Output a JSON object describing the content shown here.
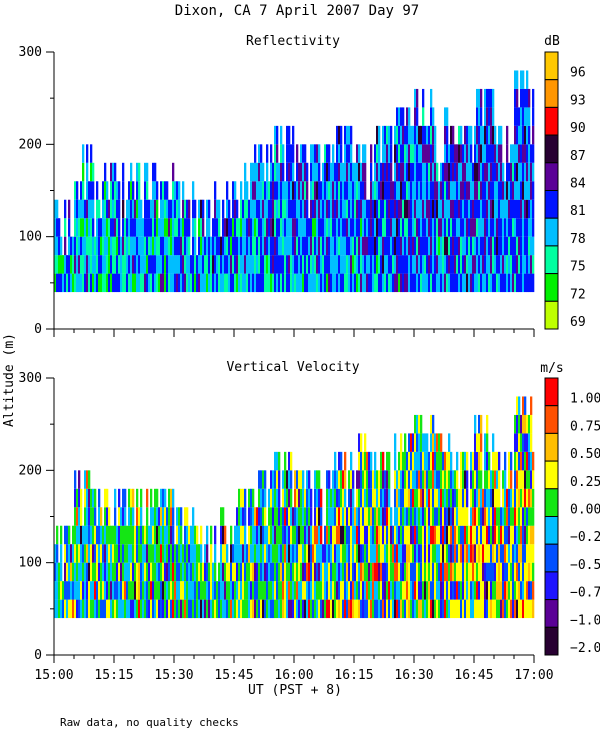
{
  "title": "Dixon, CA  7 April 2007  Day  97",
  "ylabel": "Altitude (m)",
  "xlabel": "UT  (PST + 8)",
  "footnote": "Raw data, no quality checks",
  "chart_data": [
    {
      "type": "heatmap",
      "title": "Reflectivity",
      "ylabel": "Altitude (m)",
      "xlabel": "UT  (PST + 8)",
      "xlim": [
        "15:00",
        "17:00"
      ],
      "ylim": [
        0,
        300
      ],
      "yticks": [
        "0",
        "100",
        "200",
        "300"
      ],
      "xticks": [
        "15:00",
        "15:15",
        "15:30",
        "15:45",
        "16:00",
        "16:15",
        "16:30",
        "16:45",
        "17:00"
      ],
      "gate_spacing_m": 20,
      "echo_base_m": 40,
      "echo_top_m_per_5min": [
        140,
        200,
        180,
        180,
        180,
        180,
        160,
        140,
        160,
        180,
        200,
        220,
        200,
        200,
        220,
        200,
        220,
        240,
        260,
        240,
        220,
        260,
        220,
        280
      ],
      "colorbar": {
        "unit": "dB",
        "labels": [
          "96",
          "93",
          "90",
          "87",
          "84",
          "81",
          "78",
          "75",
          "72",
          "69"
        ],
        "colors": [
          "#ffc800",
          "#ff9600",
          "#ff0000",
          "#280032",
          "#5a0096",
          "#0014ff",
          "#00beff",
          "#00ffa0",
          "#00f000",
          "#beff00"
        ]
      }
    },
    {
      "type": "heatmap",
      "title": "Vertical Velocity",
      "ylabel": "Altitude (m)",
      "xlabel": "UT  (PST + 8)",
      "xlim": [
        "15:00",
        "17:00"
      ],
      "ylim": [
        0,
        300
      ],
      "yticks": [
        "0",
        "100",
        "200",
        "300"
      ],
      "xticks": [
        "15:00",
        "15:15",
        "15:30",
        "15:45",
        "16:00",
        "16:15",
        "16:30",
        "16:45",
        "17:00"
      ],
      "gate_spacing_m": 20,
      "echo_base_m": 40,
      "echo_top_m_per_5min": [
        140,
        200,
        180,
        180,
        180,
        180,
        160,
        140,
        160,
        180,
        200,
        220,
        200,
        200,
        220,
        240,
        220,
        240,
        260,
        240,
        220,
        260,
        220,
        280
      ],
      "colorbar": {
        "unit": "m/s",
        "labels": [
          "1.00",
          "0.75",
          "0.50",
          "0.25",
          "0.00",
          "−0.25",
          "−0.50",
          "−0.75",
          "−1.00",
          "−2.00"
        ],
        "colors": [
          "#ff0000",
          "#ff5000",
          "#ffbe00",
          "#ffff00",
          "#14e614",
          "#00beff",
          "#0050ff",
          "#1e14ff",
          "#5a0096",
          "#280032"
        ]
      }
    }
  ]
}
